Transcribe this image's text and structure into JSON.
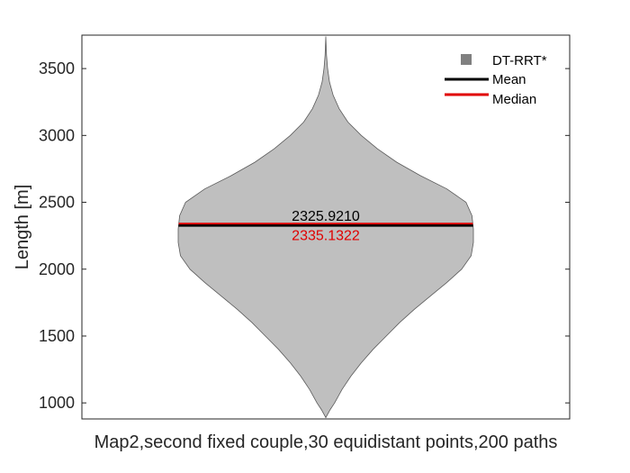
{
  "chart_data": {
    "type": "violin",
    "ylabel": "Length [m]",
    "xlabel": "Map2,second fixed couple,30 equidistant points,200 paths",
    "ylim": [
      880,
      3750
    ],
    "yticks": [
      1000,
      1500,
      2000,
      2500,
      3000,
      3500
    ],
    "grid": false,
    "legend_position": "top-right",
    "series": [
      {
        "name": "DT-RRT*",
        "color": "#bfbfbf",
        "edge_color": "#5a5a5a",
        "min": 890,
        "max": 3740,
        "density_profile": [
          [
            890,
            0.0
          ],
          [
            950,
            0.03
          ],
          [
            1000,
            0.06
          ],
          [
            1100,
            0.11
          ],
          [
            1200,
            0.17
          ],
          [
            1300,
            0.24
          ],
          [
            1400,
            0.32
          ],
          [
            1500,
            0.41
          ],
          [
            1600,
            0.5
          ],
          [
            1700,
            0.6
          ],
          [
            1800,
            0.71
          ],
          [
            1900,
            0.82
          ],
          [
            2000,
            0.92
          ],
          [
            2100,
            0.985
          ],
          [
            2200,
            1.0
          ],
          [
            2300,
            1.0
          ],
          [
            2400,
            0.99
          ],
          [
            2500,
            0.95
          ],
          [
            2600,
            0.82
          ],
          [
            2700,
            0.64
          ],
          [
            2800,
            0.48
          ],
          [
            2900,
            0.35
          ],
          [
            3000,
            0.24
          ],
          [
            3100,
            0.15
          ],
          [
            3200,
            0.09
          ],
          [
            3300,
            0.05
          ],
          [
            3400,
            0.025
          ],
          [
            3500,
            0.012
          ],
          [
            3600,
            0.005
          ],
          [
            3740,
            0.0
          ]
        ]
      }
    ],
    "mean": {
      "label": "Mean",
      "value": 2325.921,
      "text": "2325.9210",
      "color": "#000000"
    },
    "median": {
      "label": "Median",
      "value": 2335.1322,
      "text": "2335.1322",
      "color": "#e00000"
    }
  }
}
